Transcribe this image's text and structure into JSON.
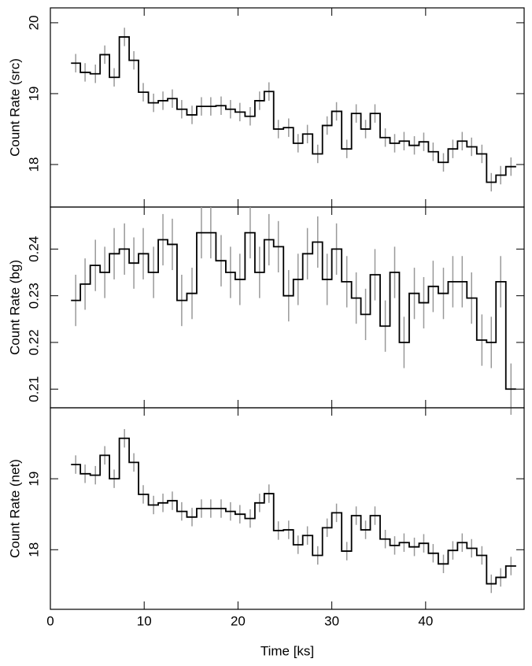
{
  "chart_data": [
    {
      "type": "step",
      "ylabel": "Count Rate (src)",
      "x": [
        2.7,
        3.7,
        4.8,
        5.8,
        6.8,
        7.9,
        8.9,
        9.9,
        11.0,
        12.0,
        13.0,
        14.0,
        15.1,
        16.1,
        17.1,
        18.2,
        19.2,
        20.2,
        21.3,
        22.3,
        23.3,
        24.3,
        25.4,
        26.4,
        27.4,
        28.5,
        29.5,
        30.5,
        31.6,
        32.6,
        33.6,
        34.6,
        35.7,
        36.7,
        37.7,
        38.8,
        39.8,
        40.8,
        41.9,
        42.9,
        43.9,
        44.9,
        46.0,
        47.0,
        48.0,
        49.1
      ],
      "series": [
        {
          "color": "#000000",
          "error_color": "#999999",
          "values": [
            19.43,
            19.3,
            19.28,
            19.55,
            19.23,
            19.8,
            19.47,
            19.02,
            18.87,
            18.9,
            18.93,
            18.78,
            18.7,
            18.82,
            18.82,
            18.83,
            18.78,
            18.74,
            18.68,
            18.9,
            19.03,
            18.5,
            18.52,
            18.3,
            18.43,
            18.15,
            18.55,
            18.75,
            18.22,
            18.72,
            18.5,
            18.72,
            18.38,
            18.3,
            18.33,
            18.27,
            18.32,
            18.18,
            18.03,
            18.22,
            18.33,
            18.25,
            18.15,
            17.75,
            17.85,
            17.97
          ],
          "errors": [
            0.13,
            0.13,
            0.13,
            0.13,
            0.13,
            0.13,
            0.13,
            0.13,
            0.13,
            0.13,
            0.13,
            0.13,
            0.13,
            0.13,
            0.13,
            0.13,
            0.13,
            0.13,
            0.13,
            0.13,
            0.13,
            0.13,
            0.13,
            0.13,
            0.13,
            0.13,
            0.13,
            0.13,
            0.13,
            0.13,
            0.13,
            0.13,
            0.13,
            0.13,
            0.13,
            0.13,
            0.13,
            0.13,
            0.13,
            0.13,
            0.13,
            0.13,
            0.13,
            0.13,
            0.13,
            0.13
          ]
        }
      ],
      "xlim": [
        0,
        50.5
      ],
      "xticks": [
        0,
        10,
        20,
        30,
        40
      ],
      "ylim": [
        17.4,
        20.21
      ],
      "yticks": [
        18,
        19,
        20
      ]
    },
    {
      "type": "step",
      "ylabel": "Count Rate (bg)",
      "x": [
        2.7,
        3.7,
        4.8,
        5.8,
        6.8,
        7.9,
        8.9,
        9.9,
        11.0,
        12.0,
        13.0,
        14.0,
        15.1,
        16.1,
        17.1,
        18.2,
        19.2,
        20.2,
        21.3,
        22.3,
        23.3,
        24.3,
        25.4,
        26.4,
        27.4,
        28.5,
        29.5,
        30.5,
        31.6,
        32.6,
        33.6,
        34.6,
        35.7,
        36.7,
        37.7,
        38.8,
        39.8,
        40.8,
        41.9,
        42.9,
        43.9,
        44.9,
        46.0,
        47.0,
        48.0,
        49.1
      ],
      "series": [
        {
          "color": "#000000",
          "error_color": "#999999",
          "values": [
            0.229,
            0.2325,
            0.2365,
            0.235,
            0.239,
            0.24,
            0.237,
            0.239,
            0.235,
            0.242,
            0.241,
            0.229,
            0.2305,
            0.2435,
            0.2435,
            0.2375,
            0.235,
            0.2335,
            0.2435,
            0.235,
            0.242,
            0.2405,
            0.23,
            0.2335,
            0.239,
            0.2415,
            0.2335,
            0.24,
            0.233,
            0.2295,
            0.226,
            0.2345,
            0.2235,
            0.235,
            0.22,
            0.2305,
            0.2285,
            0.232,
            0.2305,
            0.233,
            0.233,
            0.2295,
            0.2205,
            0.22,
            0.233,
            0.21
          ],
          "errors": [
            0.0055,
            0.0055,
            0.0055,
            0.0055,
            0.0055,
            0.0055,
            0.0055,
            0.0055,
            0.0055,
            0.0055,
            0.0055,
            0.0055,
            0.0055,
            0.0055,
            0.0055,
            0.0055,
            0.0055,
            0.0055,
            0.0055,
            0.0055,
            0.0055,
            0.0055,
            0.0055,
            0.0055,
            0.0055,
            0.0055,
            0.0055,
            0.0055,
            0.0055,
            0.0055,
            0.0055,
            0.0055,
            0.0055,
            0.0055,
            0.0055,
            0.0055,
            0.0055,
            0.0055,
            0.0055,
            0.0055,
            0.0055,
            0.0055,
            0.0055,
            0.0055,
            0.0055,
            0.0055
          ]
        }
      ],
      "xlim": [
        0,
        50.5
      ],
      "xticks": [
        0,
        10,
        20,
        30,
        40
      ],
      "ylim": [
        0.206,
        0.249
      ],
      "yticks": [
        0.21,
        0.22,
        0.23,
        0.24
      ]
    },
    {
      "type": "step",
      "ylabel": "Count Rate (net)",
      "xlabel": "Time [ks]",
      "x": [
        2.7,
        3.7,
        4.8,
        5.8,
        6.8,
        7.9,
        8.9,
        9.9,
        11.0,
        12.0,
        13.0,
        14.0,
        15.1,
        16.1,
        17.1,
        18.2,
        19.2,
        20.2,
        21.3,
        22.3,
        23.3,
        24.3,
        25.4,
        26.4,
        27.4,
        28.5,
        29.5,
        30.5,
        31.6,
        32.6,
        33.6,
        34.6,
        35.7,
        36.7,
        37.7,
        38.8,
        39.8,
        40.8,
        41.9,
        42.9,
        43.9,
        44.9,
        46.0,
        47.0,
        48.0,
        49.1
      ],
      "series": [
        {
          "color": "#000000",
          "error_color": "#999999",
          "values": [
            19.2,
            19.07,
            19.05,
            19.33,
            19.0,
            19.57,
            19.23,
            18.78,
            18.63,
            18.66,
            18.69,
            18.54,
            18.46,
            18.58,
            18.58,
            18.58,
            18.54,
            18.5,
            18.44,
            18.66,
            18.79,
            18.27,
            18.28,
            18.07,
            18.2,
            17.92,
            18.31,
            18.52,
            17.98,
            18.48,
            18.28,
            18.48,
            18.15,
            18.06,
            18.1,
            18.04,
            18.09,
            17.95,
            17.8,
            17.99,
            18.1,
            18.02,
            17.92,
            17.52,
            17.61,
            17.77
          ],
          "errors": [
            0.13,
            0.13,
            0.13,
            0.13,
            0.13,
            0.13,
            0.13,
            0.13,
            0.13,
            0.13,
            0.13,
            0.13,
            0.13,
            0.13,
            0.13,
            0.13,
            0.13,
            0.13,
            0.13,
            0.13,
            0.13,
            0.13,
            0.13,
            0.13,
            0.13,
            0.13,
            0.13,
            0.13,
            0.13,
            0.13,
            0.13,
            0.13,
            0.13,
            0.13,
            0.13,
            0.13,
            0.13,
            0.13,
            0.13,
            0.13,
            0.13,
            0.13,
            0.13,
            0.13,
            0.13,
            0.13
          ]
        }
      ],
      "xlim": [
        0,
        50.5
      ],
      "xticks": [
        0,
        10,
        20,
        30,
        40
      ],
      "ylim": [
        17.16,
        20.0
      ],
      "yticks": [
        18,
        19
      ]
    }
  ]
}
